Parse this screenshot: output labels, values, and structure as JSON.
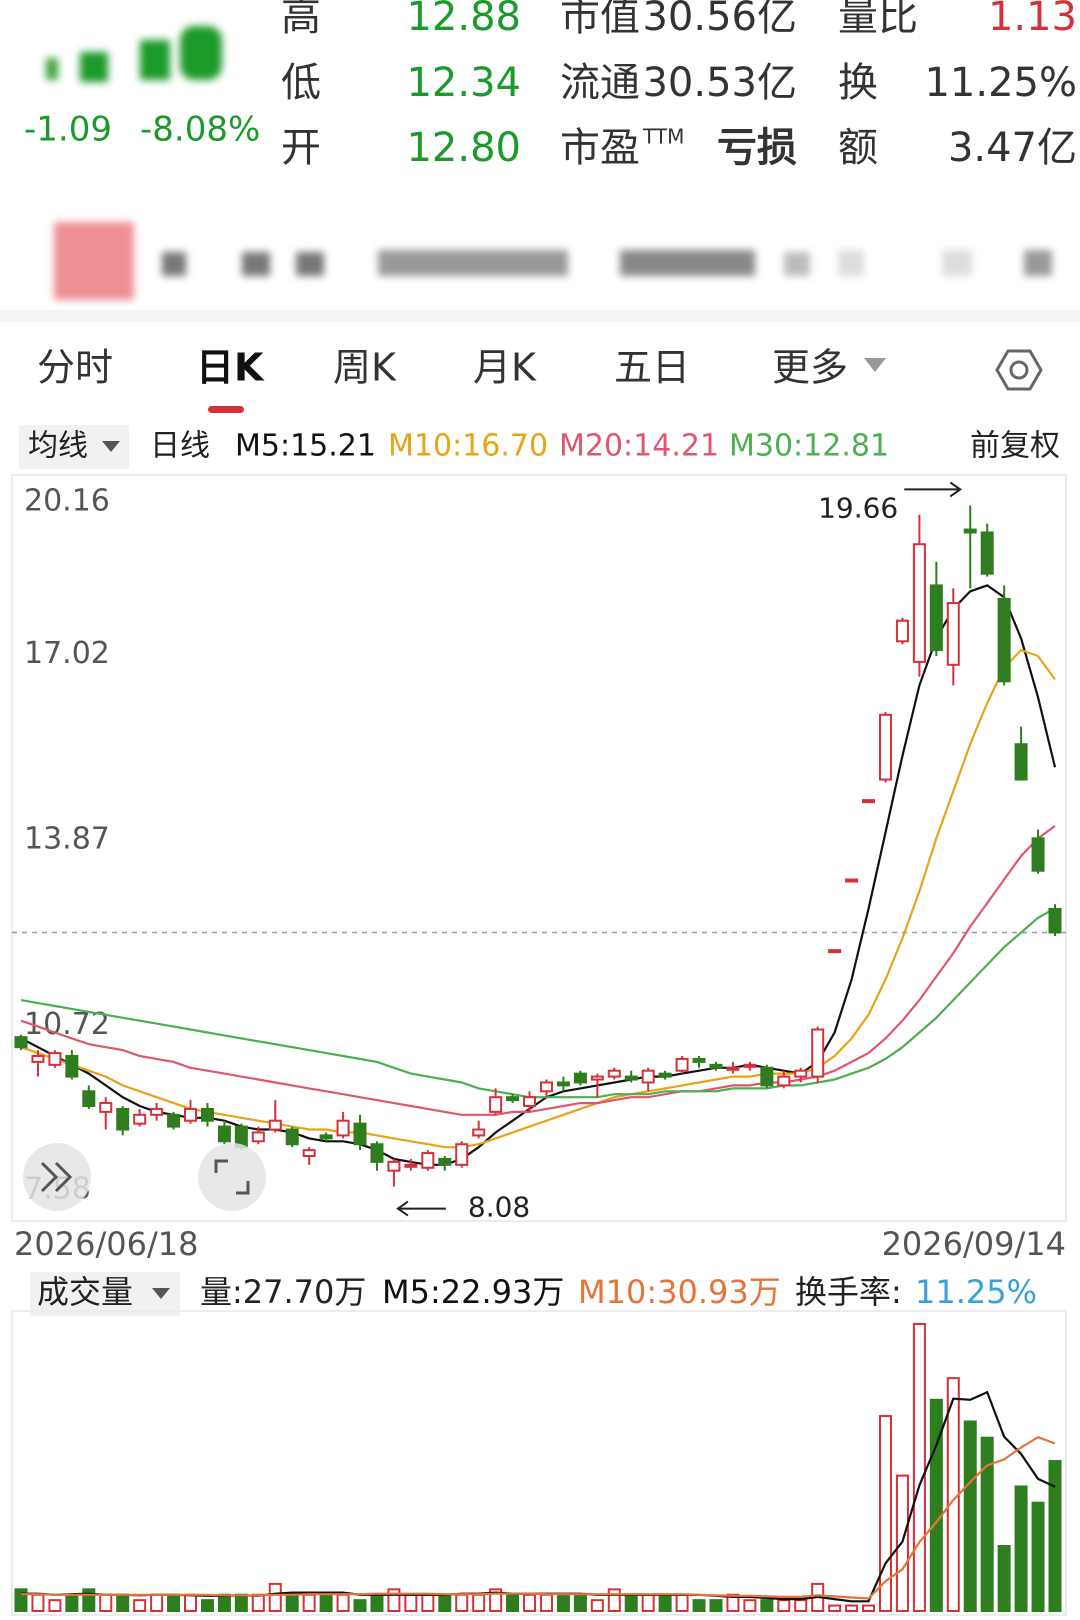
{
  "header": {
    "change": "-1.09",
    "change_pct": "-8.08%",
    "quote": [
      [
        {
          "label": "高",
          "value": "12.88"
        },
        {
          "label": "市值",
          "value": "30.56亿"
        },
        {
          "label": "量比",
          "value": "1.13"
        }
      ],
      [
        {
          "label": "低",
          "value": "12.34"
        },
        {
          "label": "流通",
          "value": "30.53亿"
        },
        {
          "label": "换",
          "value": "11.25%"
        }
      ],
      [
        {
          "label": "开",
          "value": "12.80"
        },
        {
          "label": "市盈",
          "sup": "TTM",
          "value": "亏损"
        },
        {
          "label": "额",
          "value": "3.47亿"
        }
      ]
    ]
  },
  "tabs": {
    "items": [
      "分时",
      "日K",
      "周K",
      "月K",
      "五日",
      "更多"
    ],
    "active": 1
  },
  "chart_data": {
    "type": "candlestick",
    "ma_selector": "均线",
    "period": "日线",
    "adjust": "前复权",
    "up_color": "#d6303a",
    "down_color": "#2e7d1e",
    "ylim": [
      7.58,
      20.16
    ],
    "yticks": [
      20.16,
      17.02,
      13.87,
      10.72,
      7.58
    ],
    "grid": false,
    "x_start": "2026/06/18",
    "x_end": "2026/09/14",
    "annotations": {
      "high": 19.66,
      "low": 8.08
    },
    "candles": [
      {
        "o": 10.62,
        "c": 10.45,
        "h": 10.66,
        "l": 10.4
      },
      {
        "o": 10.2,
        "c": 10.3,
        "h": 10.4,
        "l": 9.95
      },
      {
        "o": 10.15,
        "c": 10.35,
        "h": 10.4,
        "l": 10.1
      },
      {
        "o": 10.3,
        "c": 9.95,
        "h": 10.4,
        "l": 9.9
      },
      {
        "o": 9.7,
        "c": 9.45,
        "h": 9.8,
        "l": 9.4
      },
      {
        "o": 9.35,
        "c": 9.5,
        "h": 9.6,
        "l": 9.05
      },
      {
        "o": 9.4,
        "c": 9.05,
        "h": 9.45,
        "l": 8.95
      },
      {
        "o": 9.15,
        "c": 9.3,
        "h": 9.4,
        "l": 9.1
      },
      {
        "o": 9.3,
        "c": 9.4,
        "h": 9.5,
        "l": 9.2
      },
      {
        "o": 9.3,
        "c": 9.1,
        "h": 9.35,
        "l": 9.05
      },
      {
        "o": 9.2,
        "c": 9.4,
        "h": 9.55,
        "l": 9.15
      },
      {
        "o": 9.4,
        "c": 9.2,
        "h": 9.5,
        "l": 9.1
      },
      {
        "o": 9.1,
        "c": 8.85,
        "h": 9.2,
        "l": 8.8
      },
      {
        "o": 9.1,
        "c": 8.75,
        "h": 9.15,
        "l": 8.7
      },
      {
        "o": 8.85,
        "c": 9.0,
        "h": 9.1,
        "l": 8.8
      },
      {
        "o": 9.05,
        "c": 9.2,
        "h": 9.55,
        "l": 9.0
      },
      {
        "o": 9.05,
        "c": 8.8,
        "h": 9.1,
        "l": 8.75
      },
      {
        "o": 8.6,
        "c": 8.7,
        "h": 8.75,
        "l": 8.45
      },
      {
        "o": 8.95,
        "c": 8.9,
        "h": 9.0,
        "l": 8.85
      },
      {
        "o": 8.95,
        "c": 9.2,
        "h": 9.35,
        "l": 8.9
      },
      {
        "o": 9.15,
        "c": 8.8,
        "h": 9.3,
        "l": 8.7
      },
      {
        "o": 8.8,
        "c": 8.5,
        "h": 8.85,
        "l": 8.35
      },
      {
        "o": 8.35,
        "c": 8.5,
        "h": 8.55,
        "l": 8.08
      },
      {
        "o": 8.45,
        "c": 8.45,
        "h": 8.55,
        "l": 8.35
      },
      {
        "o": 8.4,
        "c": 8.65,
        "h": 8.7,
        "l": 8.35
      },
      {
        "o": 8.55,
        "c": 8.45,
        "h": 8.6,
        "l": 8.35
      },
      {
        "o": 8.45,
        "c": 8.8,
        "h": 8.85,
        "l": 8.4
      },
      {
        "o": 8.95,
        "c": 9.05,
        "h": 9.2,
        "l": 8.9
      },
      {
        "o": 9.35,
        "c": 9.6,
        "h": 9.75,
        "l": 9.3
      },
      {
        "o": 9.6,
        "c": 9.55,
        "h": 9.65,
        "l": 9.5
      },
      {
        "o": 9.45,
        "c": 9.6,
        "h": 9.7,
        "l": 9.35
      },
      {
        "o": 9.7,
        "c": 9.85,
        "h": 9.9,
        "l": 9.6
      },
      {
        "o": 9.85,
        "c": 9.8,
        "h": 9.95,
        "l": 9.7
      },
      {
        "o": 10.0,
        "c": 9.85,
        "h": 10.05,
        "l": 9.8
      },
      {
        "o": 9.9,
        "c": 9.95,
        "h": 10.0,
        "l": 9.6
      },
      {
        "o": 9.95,
        "c": 10.05,
        "h": 10.1,
        "l": 9.9
      },
      {
        "o": 9.95,
        "c": 9.9,
        "h": 10.05,
        "l": 9.85
      },
      {
        "o": 9.85,
        "c": 10.05,
        "h": 10.1,
        "l": 9.7
      },
      {
        "o": 10.0,
        "c": 9.95,
        "h": 10.05,
        "l": 9.9
      },
      {
        "o": 10.05,
        "c": 10.25,
        "h": 10.3,
        "l": 10.0
      },
      {
        "o": 10.25,
        "c": 10.2,
        "h": 10.3,
        "l": 10.1
      },
      {
        "o": 10.15,
        "c": 10.1,
        "h": 10.2,
        "l": 10.05
      },
      {
        "o": 10.1,
        "c": 10.1,
        "h": 10.2,
        "l": 10.0
      },
      {
        "o": 10.15,
        "c": 10.15,
        "h": 10.2,
        "l": 10.05
      },
      {
        "o": 10.1,
        "c": 9.8,
        "h": 10.15,
        "l": 9.75
      },
      {
        "o": 9.8,
        "c": 9.95,
        "h": 10.05,
        "l": 9.75
      },
      {
        "o": 9.95,
        "c": 10.05,
        "h": 10.1,
        "l": 9.85
      },
      {
        "o": 9.95,
        "c": 10.75,
        "h": 10.8,
        "l": 9.85
      },
      {
        "o": 12.1,
        "c": 12.1,
        "h": 12.1,
        "l": 12.1
      },
      {
        "o": 13.3,
        "c": 13.3,
        "h": 13.3,
        "l": 13.3
      },
      {
        "o": 14.65,
        "c": 14.65,
        "h": 14.65,
        "l": 14.65
      },
      {
        "o": 15.0,
        "c": 16.1,
        "h": 16.15,
        "l": 14.95
      },
      {
        "o": 17.35,
        "c": 17.7,
        "h": 17.75,
        "l": 17.3
      },
      {
        "o": 17.0,
        "c": 19.0,
        "h": 19.5,
        "l": 16.75
      },
      {
        "o": 18.3,
        "c": 17.2,
        "h": 18.7,
        "l": 17.1
      },
      {
        "o": 16.95,
        "c": 18.0,
        "h": 18.25,
        "l": 16.6
      },
      {
        "o": 19.25,
        "c": 19.2,
        "h": 19.66,
        "l": 18.25
      },
      {
        "o": 19.2,
        "c": 18.5,
        "h": 19.35,
        "l": 18.45
      },
      {
        "o": 18.07,
        "c": 16.67,
        "h": 18.3,
        "l": 16.6
      },
      {
        "o": 15.6,
        "c": 15.0,
        "h": 15.9,
        "l": 15.0
      },
      {
        "o": 14.0,
        "c": 13.45,
        "h": 14.15,
        "l": 13.4
      },
      {
        "o": 12.8,
        "c": 12.4,
        "h": 12.88,
        "l": 12.34
      }
    ],
    "series": [
      {
        "name": "M5:15.21",
        "color": "#111111",
        "values": [
          10.6,
          10.45,
          10.3,
          10.15,
          10.0,
          9.8,
          9.6,
          9.45,
          9.35,
          9.3,
          9.25,
          9.25,
          9.2,
          9.1,
          9.05,
          9.05,
          9.0,
          8.9,
          8.85,
          8.85,
          8.8,
          8.7,
          8.55,
          8.5,
          8.45,
          8.45,
          8.55,
          8.75,
          9.0,
          9.2,
          9.4,
          9.6,
          9.7,
          9.75,
          9.8,
          9.85,
          9.9,
          9.95,
          9.95,
          10.0,
          10.05,
          10.1,
          10.1,
          10.15,
          10.1,
          10.05,
          10.0,
          10.2,
          10.7,
          11.6,
          12.8,
          14.1,
          15.4,
          16.6,
          17.4,
          17.9,
          18.2,
          18.3,
          18.1,
          17.4,
          16.4,
          15.21
        ]
      },
      {
        "name": "M10:16.70",
        "color": "#e8a317",
        "values": [
          10.45,
          10.35,
          10.25,
          10.15,
          10.05,
          9.95,
          9.8,
          9.7,
          9.6,
          9.5,
          9.4,
          9.35,
          9.3,
          9.25,
          9.2,
          9.15,
          9.1,
          9.05,
          9.05,
          9.0,
          9.0,
          8.95,
          8.9,
          8.85,
          8.8,
          8.75,
          8.75,
          8.8,
          8.9,
          9.0,
          9.1,
          9.2,
          9.3,
          9.4,
          9.5,
          9.6,
          9.65,
          9.7,
          9.75,
          9.8,
          9.85,
          9.9,
          9.95,
          9.95,
          10.0,
          10.0,
          10.0,
          10.1,
          10.3,
          10.6,
          11.0,
          11.6,
          12.3,
          13.1,
          14.0,
          14.8,
          15.6,
          16.3,
          16.9,
          17.2,
          17.1,
          16.7
        ]
      },
      {
        "name": "M20:14.21",
        "color": "#e0566c",
        "values": [
          10.9,
          10.8,
          10.7,
          10.6,
          10.5,
          10.45,
          10.4,
          10.3,
          10.25,
          10.2,
          10.1,
          10.05,
          10.0,
          9.95,
          9.9,
          9.85,
          9.8,
          9.75,
          9.7,
          9.65,
          9.6,
          9.55,
          9.5,
          9.45,
          9.4,
          9.35,
          9.3,
          9.3,
          9.3,
          9.35,
          9.35,
          9.4,
          9.45,
          9.5,
          9.5,
          9.55,
          9.6,
          9.6,
          9.65,
          9.7,
          9.7,
          9.75,
          9.8,
          9.8,
          9.85,
          9.85,
          9.9,
          9.95,
          10.05,
          10.2,
          10.35,
          10.6,
          10.9,
          11.25,
          11.65,
          12.05,
          12.5,
          12.9,
          13.3,
          13.7,
          14.0,
          14.21
        ]
      },
      {
        "name": "M30:12.81",
        "color": "#4caf50",
        "values": [
          11.25,
          11.2,
          11.15,
          11.1,
          11.05,
          11.0,
          10.95,
          10.9,
          10.85,
          10.8,
          10.75,
          10.7,
          10.65,
          10.6,
          10.55,
          10.5,
          10.45,
          10.4,
          10.35,
          10.3,
          10.25,
          10.2,
          10.1,
          10.0,
          9.95,
          9.9,
          9.85,
          9.75,
          9.7,
          9.65,
          9.6,
          9.6,
          9.6,
          9.6,
          9.6,
          9.65,
          9.65,
          9.65,
          9.7,
          9.7,
          9.7,
          9.7,
          9.75,
          9.75,
          9.75,
          9.8,
          9.8,
          9.85,
          9.9,
          10.0,
          10.1,
          10.25,
          10.45,
          10.7,
          10.95,
          11.25,
          11.55,
          11.85,
          12.15,
          12.4,
          12.65,
          12.81
        ]
      }
    ],
    "volume": {
      "title": "成交量",
      "name": "量:27.70万",
      "color": "#2e7d1e",
      "turnover_label": "换手率:",
      "turnover": "11.25%",
      "values": [
        4,
        3,
        2,
        3,
        4,
        3,
        3,
        2,
        3,
        3,
        3,
        2,
        3,
        3,
        3,
        5,
        3,
        3,
        3,
        3,
        2,
        3,
        4,
        3,
        3,
        3,
        3,
        3,
        4,
        3,
        3,
        3,
        3,
        3,
        2,
        4,
        3,
        3,
        3,
        3,
        2,
        2,
        3,
        2,
        2,
        2,
        2,
        5,
        1,
        1,
        1,
        36,
        25,
        53,
        39,
        43,
        35,
        32,
        12,
        23,
        20,
        27.7
      ],
      "series": [
        {
          "name": "M5:22.93万",
          "color": "#111111",
          "values": [
            3.2,
            3.2,
            3.0,
            3.1,
            3.2,
            3.0,
            3.0,
            2.9,
            3.0,
            3.0,
            2.9,
            2.8,
            2.8,
            2.9,
            2.8,
            3.2,
            3.4,
            3.4,
            3.4,
            3.4,
            3.0,
            3.0,
            3.0,
            3.0,
            3.0,
            3.0,
            3.2,
            3.2,
            3.4,
            3.2,
            3.2,
            3.2,
            3.2,
            3.2,
            3.0,
            3.0,
            3.0,
            3.0,
            3.0,
            3.0,
            3.0,
            2.8,
            2.6,
            2.6,
            2.4,
            2.2,
            2.2,
            2.6,
            2.2,
            1.8,
            1.8,
            8.8,
            12.8,
            23.2,
            30.6,
            39.2,
            39.0,
            40.4,
            32.2,
            29.0,
            24.4,
            22.93
          ]
        },
        {
          "name": "M10:30.93万",
          "color": "#e5743a",
          "values": [
            3.1,
            3.1,
            3.0,
            3.0,
            3.0,
            3.0,
            3.0,
            3.0,
            3.0,
            3.0,
            3.0,
            3.0,
            2.9,
            2.9,
            2.9,
            3.0,
            3.0,
            3.1,
            3.1,
            3.1,
            3.1,
            3.2,
            3.2,
            3.2,
            3.2,
            3.1,
            3.1,
            3.1,
            3.2,
            3.2,
            3.2,
            3.1,
            3.1,
            3.1,
            3.1,
            3.1,
            3.1,
            3.1,
            3.1,
            3.1,
            3.0,
            2.9,
            2.8,
            2.8,
            2.7,
            2.6,
            2.6,
            2.9,
            2.7,
            2.5,
            2.3,
            5.5,
            7.7,
            12.7,
            16.4,
            20.5,
            23.8,
            26.9,
            28.0,
            30.2,
            32.1,
            30.93
          ]
        }
      ]
    }
  }
}
